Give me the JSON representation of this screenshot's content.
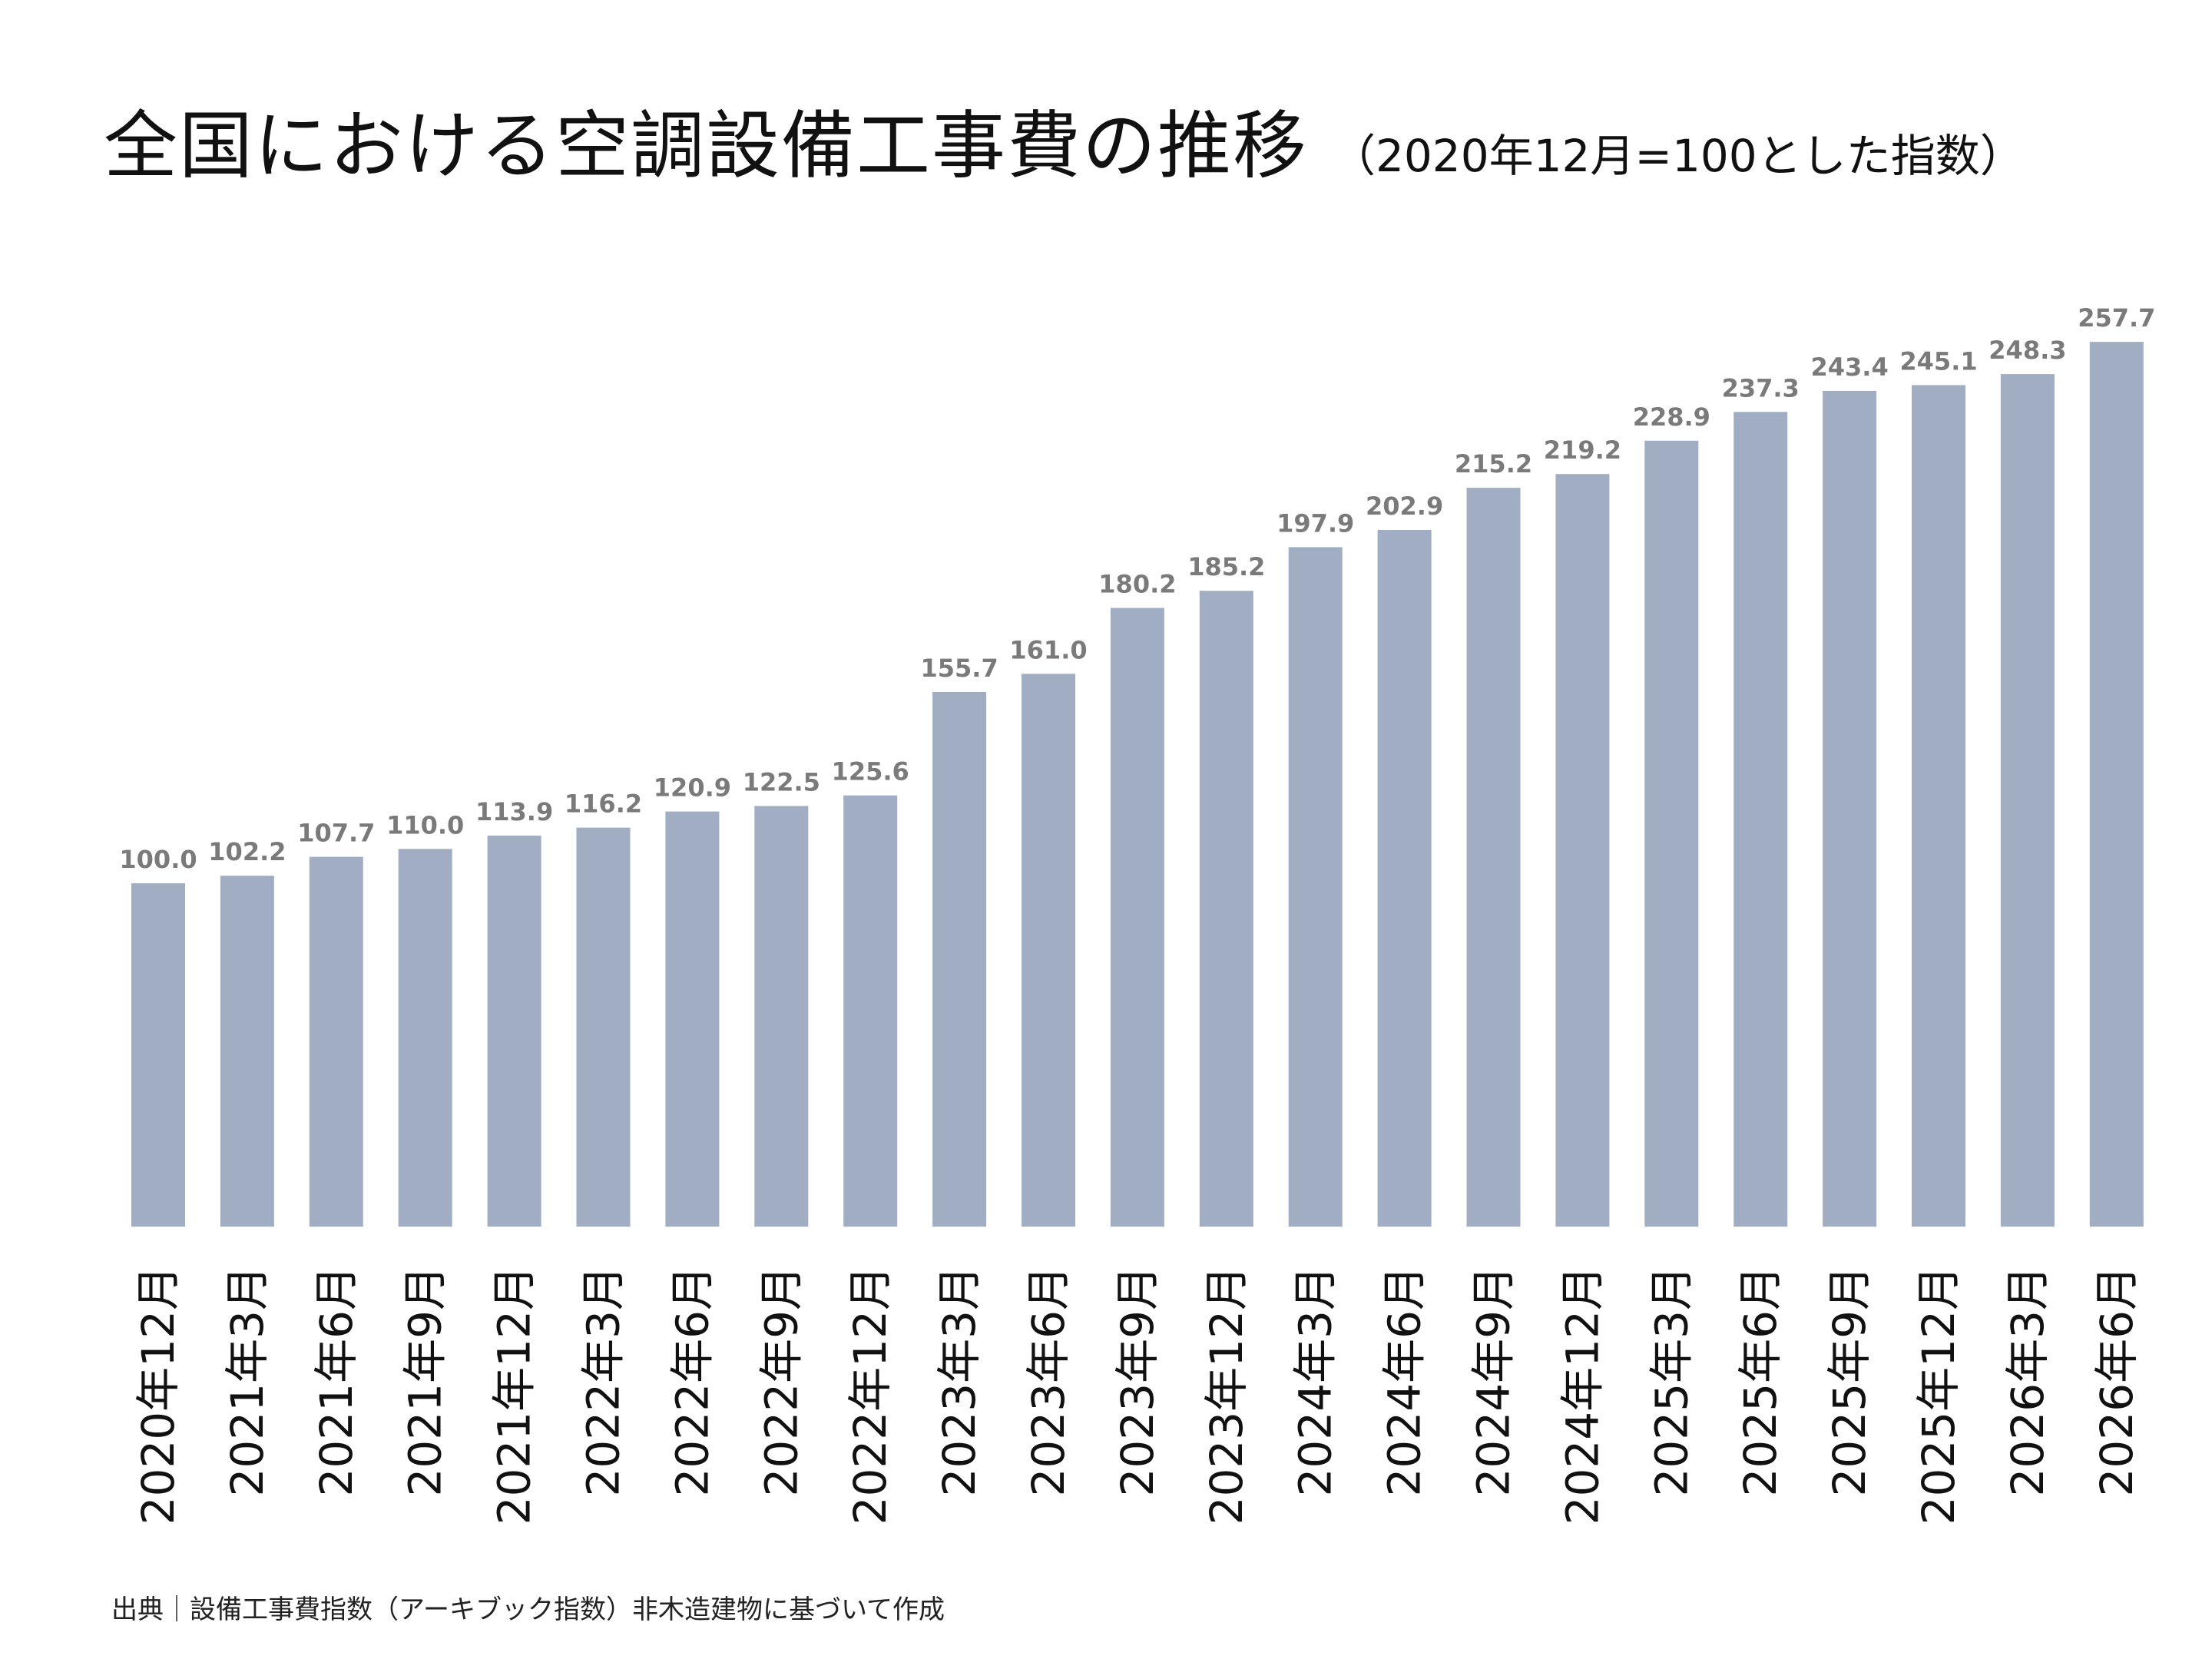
{
  "title": {
    "main": "全国における空調設備工事費の推移",
    "sub": "（2020年12月=100とした指数）"
  },
  "source": "出典｜設備工事費指数（アーキブック指数）非木造建物に基づいて作成",
  "chart_data": {
    "type": "bar",
    "title": "全国における空調設備工事費の推移（2020年12月=100とした指数）",
    "categories": [
      "2020年12月",
      "2021年3月",
      "2021年6月",
      "2021年9月",
      "2021年12月",
      "2022年3月",
      "2022年6月",
      "2022年9月",
      "2022年12月",
      "2023年3月",
      "2023年6月",
      "2023年9月",
      "2023年12月",
      "2024年3月",
      "2024年6月",
      "2024年9月",
      "2024年12月",
      "2025年3月",
      "2025年6月",
      "2025年9月",
      "2025年12月",
      "2026年3月",
      "2026年6月"
    ],
    "values": [
      100.0,
      102.2,
      107.7,
      110.0,
      113.9,
      116.2,
      120.9,
      122.5,
      125.6,
      155.7,
      161.0,
      180.2,
      185.2,
      197.9,
      202.9,
      215.2,
      219.2,
      228.9,
      237.3,
      243.4,
      245.1,
      248.3,
      257.7
    ],
    "value_labels": [
      "100.0",
      "102.2",
      "107.7",
      "110.0",
      "113.9",
      "116.2",
      "120.9",
      "122.5",
      "125.6",
      "155.7",
      "161.0",
      "180.2",
      "185.2",
      "197.9",
      "202.9",
      "215.2",
      "219.2",
      "228.9",
      "237.3",
      "243.4",
      "245.1",
      "248.3",
      "257.7"
    ],
    "ylim": [
      0,
      260
    ],
    "grid": false,
    "legend": "none",
    "data_labels": true,
    "bar_color": "#a0adc2",
    "label_color": "#7a7a7a"
  }
}
